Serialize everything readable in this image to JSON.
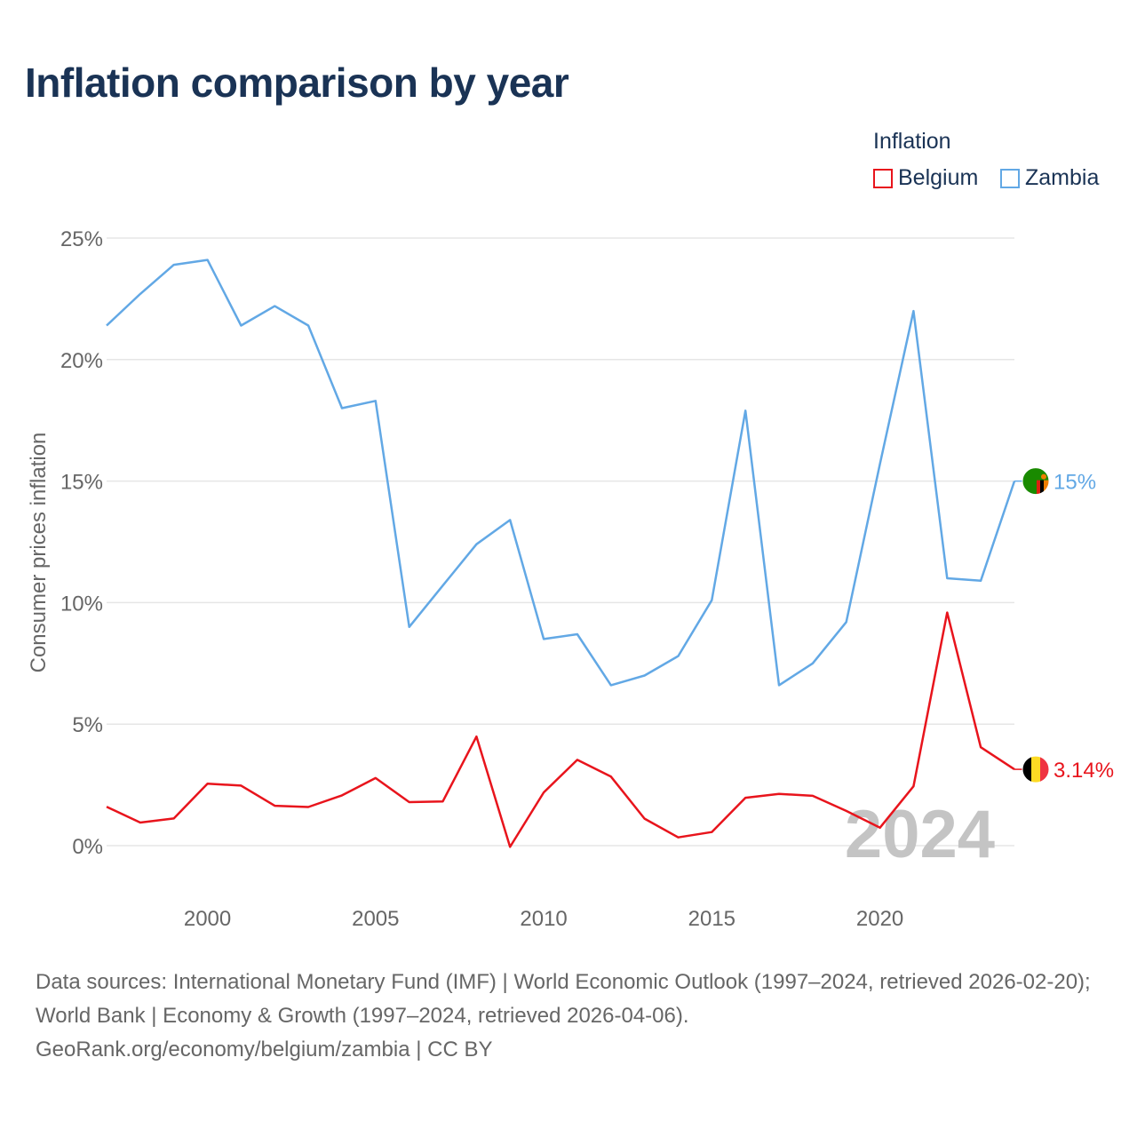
{
  "title": "Inflation comparison by year",
  "legend": {
    "title": "Inflation",
    "items": [
      {
        "label": "Belgium",
        "color": "#e8141c"
      },
      {
        "label": "Zambia",
        "color": "#62a8e5"
      }
    ]
  },
  "year_watermark": "2024",
  "footer": {
    "line1": "Data sources: International Monetary Fund (IMF) | World Economic Outlook (1997–2024, retrieved 2026-02-20); World Bank | Economy & Growth (1997–2024, retrieved 2026-04-06).",
    "line2": "GeoRank.org/economy/belgium/zambia | CC BY"
  },
  "chart_data": {
    "type": "line",
    "title": "Inflation comparison by year",
    "xlabel": "",
    "ylabel": "Consumer prices inflation",
    "xlim": [
      1997,
      2024
    ],
    "ylim": [
      0,
      25
    ],
    "x_ticks": [
      2000,
      2005,
      2010,
      2015,
      2020
    ],
    "x_tick_labels": [
      "2000",
      "2005",
      "2010",
      "2015",
      "2020"
    ],
    "y_ticks": [
      0,
      5,
      10,
      15,
      20,
      25
    ],
    "y_tick_labels": [
      "0%",
      "5%",
      "10%",
      "15%",
      "20%",
      "25%"
    ],
    "grid": true,
    "x": [
      1997,
      1998,
      1999,
      2000,
      2001,
      2002,
      2003,
      2004,
      2005,
      2006,
      2007,
      2008,
      2009,
      2010,
      2011,
      2012,
      2013,
      2014,
      2015,
      2016,
      2017,
      2018,
      2019,
      2020,
      2021,
      2022,
      2023,
      2024
    ],
    "series": [
      {
        "name": "Zambia",
        "color": "#62a8e5",
        "end_label": "15%",
        "flag": "zambia-flag",
        "values": [
          21.4,
          22.7,
          23.9,
          24.1,
          21.4,
          22.2,
          21.4,
          18.0,
          18.3,
          9.0,
          10.7,
          12.4,
          13.4,
          8.5,
          8.7,
          6.6,
          7.0,
          7.8,
          10.1,
          17.9,
          6.6,
          7.5,
          9.2,
          15.7,
          22.0,
          11.0,
          10.9,
          15.0
        ]
      },
      {
        "name": "Belgium",
        "color": "#e8141c",
        "end_label": "3.14%",
        "flag": "belgium-flag",
        "values": [
          1.6,
          0.95,
          1.12,
          2.55,
          2.47,
          1.64,
          1.59,
          2.07,
          2.78,
          1.79,
          1.82,
          4.49,
          -0.05,
          2.19,
          3.53,
          2.84,
          1.11,
          0.34,
          0.56,
          1.97,
          2.13,
          2.05,
          1.43,
          0.74,
          2.44,
          9.59,
          4.05,
          3.14
        ]
      }
    ]
  }
}
